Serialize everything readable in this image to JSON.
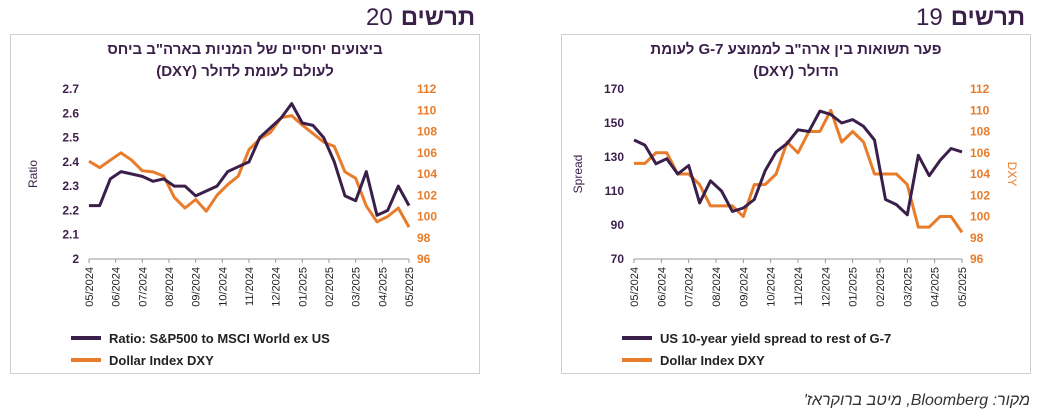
{
  "figures": {
    "left": {
      "word": "תרשים",
      "number": "20",
      "title_lines": [
        "ביצועים יחסיים של המניות בארה\"ב ביחס",
        "לעולם לעומת לדולר (DXY)"
      ]
    },
    "right": {
      "word": "תרשים",
      "number": "19",
      "title_lines": [
        "פער תשואות בין ארה\"ב לממוצע G-7 לעומת",
        "הדולר (DXY)"
      ]
    }
  },
  "source": "מקור: Bloomberg, מיטב ברוקראז'",
  "colors": {
    "primary": "#3b1f4b",
    "secondary": "#e87c2a"
  },
  "chart_data": [
    {
      "type": "line",
      "x_ticks": [
        "05/2024",
        "06/2024",
        "07/2024",
        "08/2024",
        "09/2024",
        "10/2024",
        "11/2024",
        "12/2024",
        "01/2025",
        "02/2025",
        "03/2025",
        "04/2025",
        "05/2025"
      ],
      "left_axis": {
        "label": "Ratio",
        "ticks": [
          "2",
          "2.1",
          "2.2",
          "2.3",
          "2.4",
          "2.5",
          "2.6",
          "2.7"
        ],
        "range": [
          2,
          2.7
        ]
      },
      "right_axis": {
        "label": "",
        "ticks": [
          "96",
          "98",
          "100",
          "102",
          "104",
          "106",
          "108",
          "110",
          "112"
        ],
        "range": [
          96,
          112
        ]
      },
      "series": [
        {
          "name": "Ratio: S&P500 to MSCI World ex US",
          "axis": "left",
          "values": [
            2.22,
            2.22,
            2.33,
            2.36,
            2.35,
            2.34,
            2.32,
            2.33,
            2.3,
            2.3,
            2.26,
            2.28,
            2.3,
            2.36,
            2.38,
            2.4,
            2.5,
            2.54,
            2.58,
            2.64,
            2.56,
            2.55,
            2.5,
            2.4,
            2.26,
            2.24,
            2.36,
            2.18,
            2.2,
            2.3,
            2.22
          ]
        },
        {
          "name": "Dollar Index DXY",
          "axis": "right",
          "values": [
            105.2,
            104.6,
            105.3,
            106.0,
            105.3,
            104.3,
            104.2,
            103.8,
            101.8,
            100.8,
            101.6,
            100.5,
            102.0,
            103.0,
            103.8,
            106.3,
            107.3,
            107.9,
            109.3,
            109.5,
            108.6,
            107.8,
            107.0,
            106.6,
            104.2,
            103.6,
            101.0,
            99.5,
            100.0,
            100.8,
            99.0
          ]
        }
      ]
    },
    {
      "type": "line",
      "x_ticks": [
        "05/2024",
        "06/2024",
        "07/2024",
        "08/2024",
        "09/2024",
        "10/2024",
        "11/2024",
        "12/2024",
        "01/2025",
        "02/2025",
        "03/2025",
        "04/2025",
        "05/2025"
      ],
      "left_axis": {
        "label": "Spread",
        "ticks": [
          "70",
          "90",
          "110",
          "130",
          "150",
          "170"
        ],
        "range": [
          70,
          170
        ]
      },
      "right_axis": {
        "label": "DXY",
        "ticks": [
          "96",
          "98",
          "100",
          "102",
          "104",
          "106",
          "108",
          "110",
          "112"
        ],
        "range": [
          96,
          112
        ]
      },
      "series": [
        {
          "name": "US 10-year yield spread to rest of G-7",
          "axis": "left",
          "values": [
            140,
            137,
            126,
            129,
            120,
            125,
            103,
            116,
            110,
            98,
            100,
            105,
            122,
            133,
            138,
            146,
            145,
            157,
            155,
            150,
            152,
            148,
            140,
            105,
            102,
            96,
            131,
            119,
            128,
            135,
            133
          ]
        },
        {
          "name": "Dollar Index DXY",
          "axis": "right",
          "values": [
            105,
            105,
            106,
            106,
            104,
            104,
            103,
            101,
            101,
            101,
            100,
            103,
            103,
            104,
            107,
            106,
            108,
            108,
            110,
            107,
            108,
            107,
            104,
            104,
            104,
            103,
            99,
            99,
            100,
            100,
            98.5
          ]
        }
      ]
    }
  ]
}
